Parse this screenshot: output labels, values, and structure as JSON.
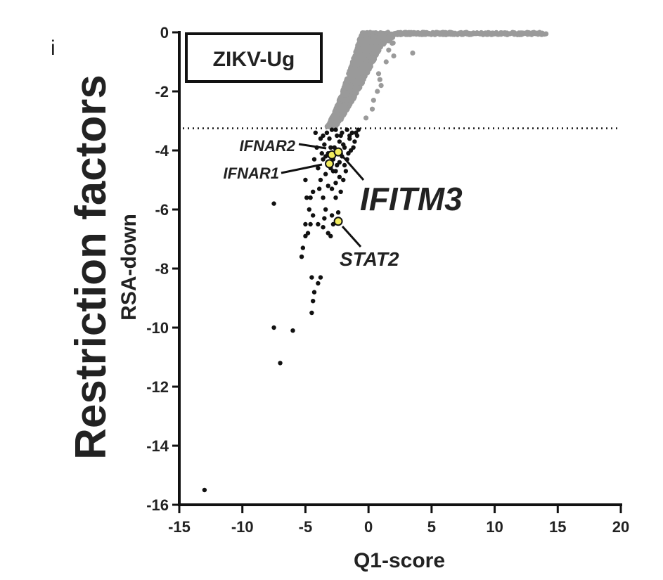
{
  "chart_data": {
    "type": "scatter",
    "side_title": "Restriction factors",
    "panel_label": "ZIKV-Ug",
    "xlabel": "Q1-score",
    "ylabel": "RSA-down",
    "xlim": [
      -15,
      20
    ],
    "ylim": [
      -16,
      0
    ],
    "xticks": [
      "-15",
      "-10",
      "-5",
      "0",
      "5",
      "10",
      "15",
      "20"
    ],
    "yticks": [
      "0",
      "-2",
      "-4",
      "-6",
      "-8",
      "-10",
      "-12",
      "-14",
      "-16"
    ],
    "threshold_y": -3.25,
    "colors": {
      "non_hit": "#9a9a9a",
      "hit": "#111111",
      "highlight": "#f2ec5c",
      "axis": "#111111"
    },
    "hits": [
      [
        -13.0,
        -15.5
      ],
      [
        -7.5,
        -10.0
      ],
      [
        -7.0,
        -11.2
      ],
      [
        -6.0,
        -10.1
      ],
      [
        -7.5,
        -5.8
      ],
      [
        -4.5,
        -9.5
      ],
      [
        -4.4,
        -9.1
      ],
      [
        -4.3,
        -8.8
      ],
      [
        -4.5,
        -8.3
      ],
      [
        -4.0,
        -8.5
      ],
      [
        -3.8,
        -8.3
      ],
      [
        -5.3,
        -7.6
      ],
      [
        -5.2,
        -7.3
      ],
      [
        -5.0,
        -6.9
      ],
      [
        -4.8,
        -6.8
      ],
      [
        -4.6,
        -6.5
      ],
      [
        -5.0,
        -6.5
      ],
      [
        -4.4,
        -6.2
      ],
      [
        -4.0,
        -6.5
      ],
      [
        -3.6,
        -6.6
      ],
      [
        -3.2,
        -6.8
      ],
      [
        -3.0,
        -6.9
      ],
      [
        -2.8,
        -6.5
      ],
      [
        -2.9,
        -6.2
      ],
      [
        -3.4,
        -6.0
      ],
      [
        -4.9,
        -5.6
      ],
      [
        -4.6,
        -5.6
      ],
      [
        -4.4,
        -5.4
      ],
      [
        -3.6,
        -5.6
      ],
      [
        -3.2,
        -5.2
      ],
      [
        -2.9,
        -5.3
      ],
      [
        -2.6,
        -5.6
      ],
      [
        -2.2,
        -5.4
      ],
      [
        -2.0,
        -5.0
      ],
      [
        -5.0,
        -5.0
      ],
      [
        -3.8,
        -5.0
      ],
      [
        -3.4,
        -4.8
      ],
      [
        -3.0,
        -4.6
      ],
      [
        -2.6,
        -4.7
      ],
      [
        -2.3,
        -4.9
      ],
      [
        -1.8,
        -4.7
      ],
      [
        -4.0,
        -4.6
      ],
      [
        -3.6,
        -4.3
      ],
      [
        -3.2,
        -4.1
      ],
      [
        -2.8,
        -4.3
      ],
      [
        -2.5,
        -4.5
      ],
      [
        -2.1,
        -4.2
      ],
      [
        -1.7,
        -4.3
      ],
      [
        -1.4,
        -4.0
      ],
      [
        -3.5,
        -3.8
      ],
      [
        -3.1,
        -3.6
      ],
      [
        -2.7,
        -3.9
      ],
      [
        -2.3,
        -3.7
      ],
      [
        -1.9,
        -3.9
      ],
      [
        -1.5,
        -3.6
      ],
      [
        -1.1,
        -3.7
      ],
      [
        -0.9,
        -3.5
      ],
      [
        -3.3,
        -3.4
      ],
      [
        -2.9,
        -3.3
      ],
      [
        -2.5,
        -3.5
      ],
      [
        -2.1,
        -3.4
      ],
      [
        -1.7,
        -3.3
      ],
      [
        -1.3,
        -3.4
      ],
      [
        -3.8,
        -3.6
      ],
      [
        -4.1,
        -3.9
      ],
      [
        -3.7,
        -4.1
      ],
      [
        -2.0,
        -3.8
      ],
      [
        -1.6,
        -4.1
      ],
      [
        -2.4,
        -4.0
      ],
      [
        -3.0,
        -3.9
      ],
      [
        -1.2,
        -3.9
      ],
      [
        -2.8,
        -4.7
      ],
      [
        -3.2,
        -4.5
      ],
      [
        -4.3,
        -4.3
      ],
      [
        -1.9,
        -4.5
      ],
      [
        -2.6,
        -5.1
      ],
      [
        -3.9,
        -5.3
      ],
      [
        -4.7,
        -6.0
      ],
      [
        -3.5,
        -6.3
      ],
      [
        -2.4,
        -6.1
      ],
      [
        -2.2,
        -3.5
      ],
      [
        -0.8,
        -3.3
      ],
      [
        -3.4,
        -4.2
      ],
      [
        -2.2,
        -4.1
      ],
      [
        -1.5,
        -3.5
      ],
      [
        -3.6,
        -3.5
      ],
      [
        -4.2,
        -3.4
      ],
      [
        -2.6,
        -3.3
      ],
      [
        -1.0,
        -3.4
      ],
      [
        -2.3,
        -4.4
      ]
    ],
    "highlights": [
      {
        "gene": "IFNAR2",
        "x": -2.9,
        "y": -4.15
      },
      {
        "gene": "IFNAR1",
        "x": -3.1,
        "y": -4.45
      },
      {
        "gene": "IFITM3",
        "x": -2.4,
        "y": -4.05
      },
      {
        "gene": "STAT2",
        "x": -2.4,
        "y": -6.4
      }
    ],
    "annotations": [
      "IFNAR2",
      "IFNAR1",
      "IFITM3",
      "STAT2"
    ],
    "stray_mark": "i"
  }
}
